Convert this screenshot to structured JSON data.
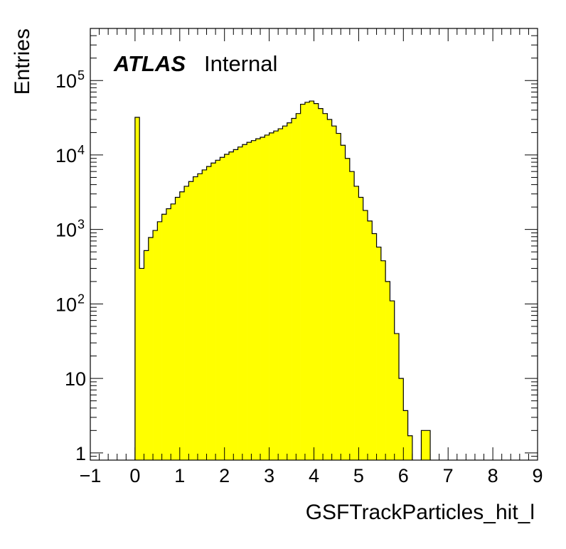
{
  "chart_data": {
    "type": "bar",
    "style": "histogram",
    "xlabel": "GSFTrackParticles_hit_l",
    "ylabel": "Entries",
    "label": {
      "experiment": "ATLAS",
      "status": "Internal"
    },
    "log_y": true,
    "xlim": [
      -1,
      9
    ],
    "ylim": [
      0.8,
      500000
    ],
    "bin_width": 0.1,
    "bin_start": 0.0,
    "x_tick_labels": [
      "−1",
      "0",
      "1",
      "2",
      "3",
      "4",
      "5",
      "6",
      "7",
      "8",
      "9"
    ],
    "y_tick_labels": [
      {
        "base": "1",
        "exp": ""
      },
      {
        "base": "10",
        "exp": ""
      },
      {
        "base": "10",
        "exp": "2"
      },
      {
        "base": "10",
        "exp": "3"
      },
      {
        "base": "10",
        "exp": "4"
      },
      {
        "base": "10",
        "exp": "5"
      }
    ],
    "fill_color": "#ffff00",
    "line_color": "#000000",
    "values": [
      32000,
      300,
      520,
      780,
      970,
      1270,
      1600,
      1900,
      2200,
      2700,
      3200,
      3800,
      4400,
      5100,
      5600,
      6300,
      7000,
      7800,
      8500,
      9300,
      10200,
      11000,
      11800,
      12800,
      13800,
      14800,
      15600,
      16500,
      17300,
      18500,
      19800,
      21000,
      22500,
      24500,
      27000,
      31000,
      36000,
      48000,
      51000,
      53000,
      49000,
      42000,
      36000,
      30000,
      24500,
      19500,
      13500,
      9000,
      6000,
      3800,
      2700,
      1800,
      1300,
      880,
      580,
      380,
      200,
      110,
      40,
      10,
      3.7,
      1.7,
      0,
      0,
      2,
      2,
      0
    ]
  }
}
